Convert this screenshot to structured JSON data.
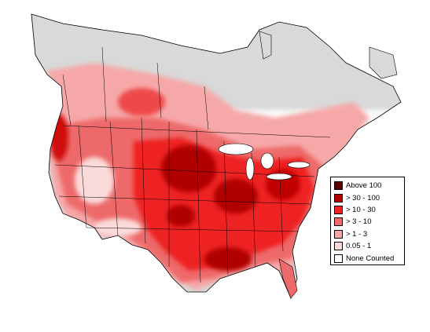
{
  "map": {
    "land_color": "#d9d9d9",
    "state_line_color": "#000000",
    "ocean_color": "#ffffff"
  },
  "legend": {
    "items": [
      {
        "label": "Above 100",
        "color": "#5a0000"
      },
      {
        "label": "> 30 - 100",
        "color": "#b00000"
      },
      {
        "label": "> 10 - 30",
        "color": "#ee2222"
      },
      {
        "label": "> 3 - 10",
        "color": "#ee6a6a"
      },
      {
        "label": "> 1 - 3",
        "color": "#f6a8a8"
      },
      {
        "label": "0.05 - 1",
        "color": "#fbdada"
      },
      {
        "label": "None Counted",
        "color": "#ffffff"
      }
    ]
  }
}
